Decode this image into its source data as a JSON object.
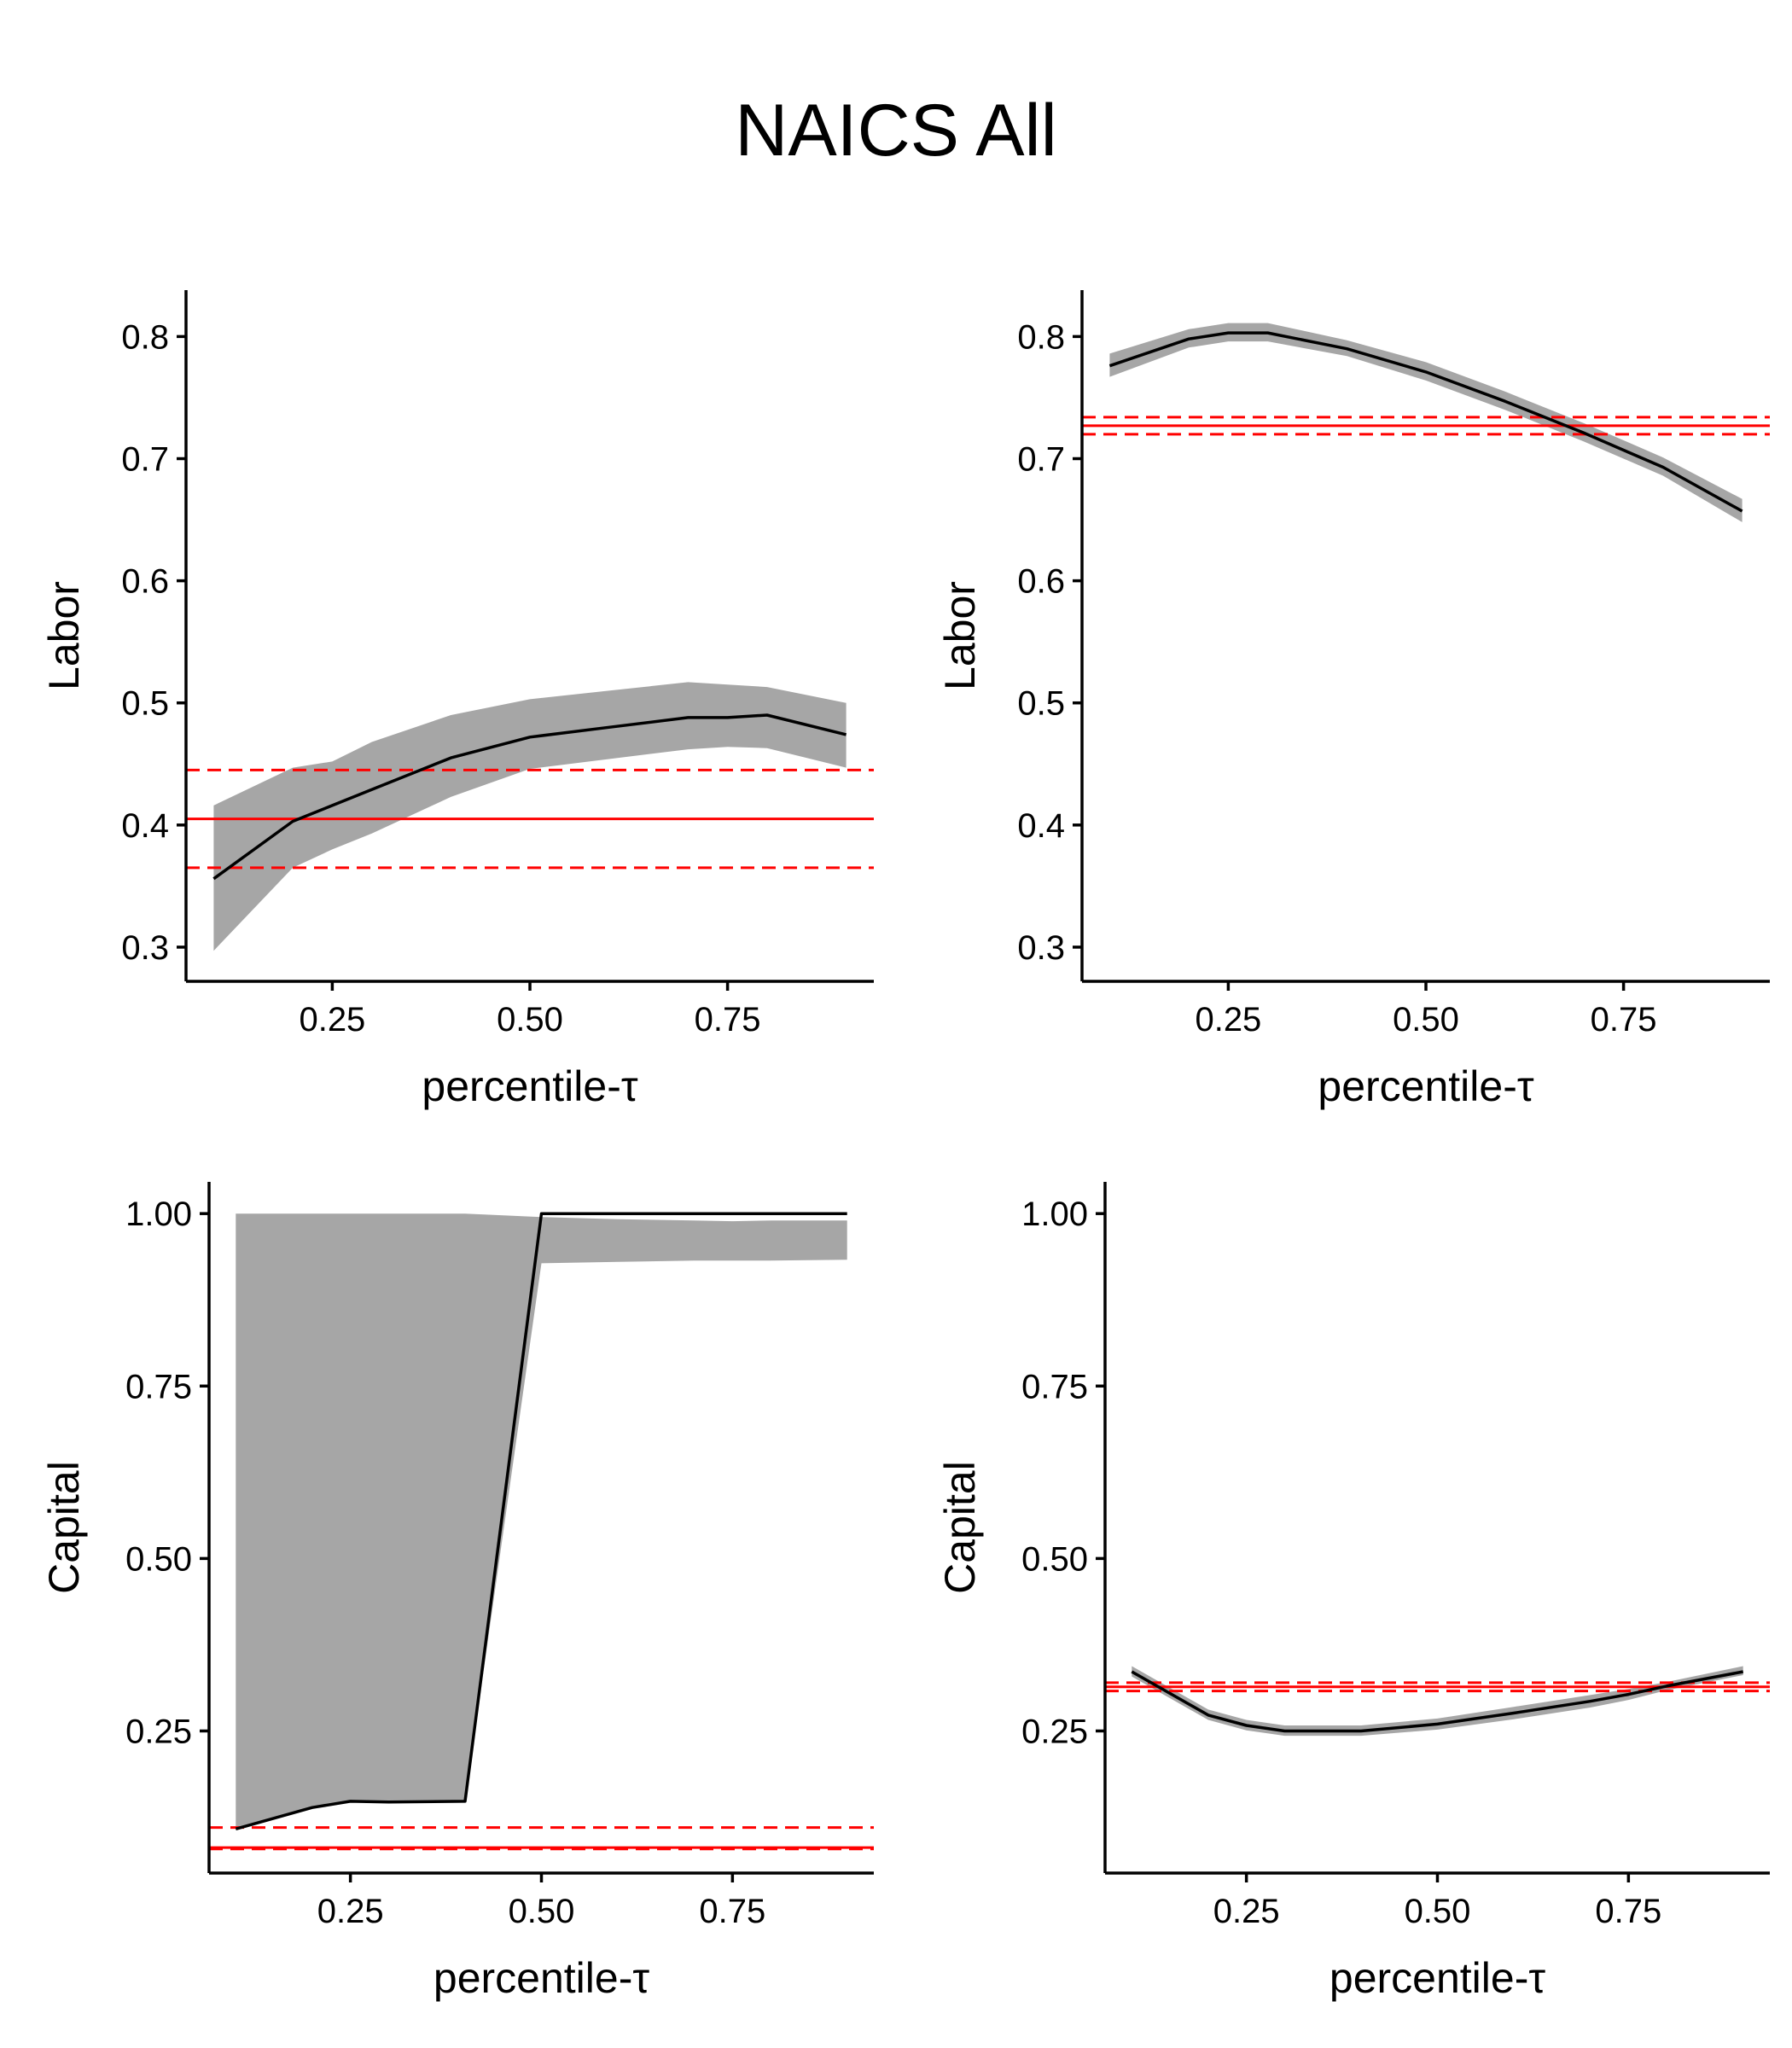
{
  "title": "NAICS All",
  "chart_data": [
    {
      "type": "line",
      "panel": "top-left",
      "xlabel": "percentile-τ",
      "ylabel": "Labor",
      "xlim": [
        0.065,
        0.935
      ],
      "ylim": [
        0.272,
        0.838
      ],
      "xticks": [
        0.25,
        0.5,
        0.75
      ],
      "xtick_labels": [
        "0.25",
        "0.50",
        "0.75"
      ],
      "yticks": [
        0.3,
        0.4,
        0.5,
        0.6,
        0.7,
        0.8
      ],
      "ytick_labels": [
        "0.3",
        "0.4",
        "0.5",
        "0.6",
        "0.7",
        "0.8"
      ],
      "x": [
        0.1,
        0.2,
        0.25,
        0.3,
        0.4,
        0.5,
        0.6,
        0.7,
        0.75,
        0.8,
        0.9
      ],
      "estimate": [
        0.356,
        0.403,
        0.416,
        0.429,
        0.455,
        0.472,
        0.48,
        0.488,
        0.488,
        0.49,
        0.474
      ],
      "ci_lower": [
        0.297,
        0.365,
        0.38,
        0.393,
        0.423,
        0.446,
        0.454,
        0.462,
        0.464,
        0.463,
        0.447
      ],
      "ci_upper": [
        0.416,
        0.447,
        0.452,
        0.468,
        0.49,
        0.503,
        0.51,
        0.517,
        0.515,
        0.513,
        0.5
      ],
      "reference": 0.405,
      "reference_lower": 0.365,
      "reference_upper": 0.445,
      "colors": {
        "line": "#000000",
        "band": "#a6a6a6",
        "reference": "#ff0000"
      }
    },
    {
      "type": "line",
      "panel": "top-right",
      "xlabel": "percentile-τ",
      "ylabel": "Labor",
      "xlim": [
        0.065,
        0.935
      ],
      "ylim": [
        0.272,
        0.838
      ],
      "xticks": [
        0.25,
        0.5,
        0.75
      ],
      "xtick_labels": [
        "0.25",
        "0.50",
        "0.75"
      ],
      "yticks": [
        0.3,
        0.4,
        0.5,
        0.6,
        0.7,
        0.8
      ],
      "ytick_labels": [
        "0.3",
        "0.4",
        "0.5",
        "0.6",
        "0.7",
        "0.8"
      ],
      "x": [
        0.1,
        0.2,
        0.25,
        0.3,
        0.4,
        0.5,
        0.6,
        0.7,
        0.75,
        0.8,
        0.9
      ],
      "estimate": [
        0.776,
        0.798,
        0.803,
        0.803,
        0.79,
        0.771,
        0.747,
        0.721,
        0.707,
        0.693,
        0.657
      ],
      "ci_lower": [
        0.767,
        0.791,
        0.796,
        0.796,
        0.784,
        0.764,
        0.74,
        0.714,
        0.7,
        0.686,
        0.648
      ],
      "ci_upper": [
        0.786,
        0.806,
        0.811,
        0.811,
        0.797,
        0.779,
        0.755,
        0.729,
        0.715,
        0.701,
        0.667
      ],
      "reference": 0.727,
      "reference_lower": 0.72,
      "reference_upper": 0.734,
      "colors": {
        "line": "#000000",
        "band": "#a6a6a6",
        "reference": "#ff0000"
      }
    },
    {
      "type": "line",
      "panel": "bottom-left",
      "xlabel": "percentile-τ",
      "ylabel": "Capital",
      "xlim": [
        0.065,
        0.935
      ],
      "ylim": [
        0.044,
        1.046
      ],
      "xticks": [
        0.25,
        0.5,
        0.75
      ],
      "xtick_labels": [
        "0.25",
        "0.50",
        "0.75"
      ],
      "yticks": [
        0.25,
        0.5,
        0.75,
        1.0
      ],
      "ytick_labels": [
        "0.25",
        "0.50",
        "0.75",
        "1.00"
      ],
      "x": [
        0.1,
        0.2,
        0.25,
        0.3,
        0.4,
        0.5,
        0.6,
        0.7,
        0.75,
        0.8,
        0.9
      ],
      "estimate": [
        0.108,
        0.139,
        0.148,
        0.147,
        0.148,
        1.0,
        1.0,
        1.0,
        1.0,
        1.0,
        1.0
      ],
      "ci_lower": [
        0.108,
        0.139,
        0.148,
        0.147,
        0.148,
        0.928,
        0.93,
        0.932,
        0.932,
        0.932,
        0.933
      ],
      "ci_upper": [
        1.0,
        1.0,
        1.0,
        1.0,
        1.0,
        0.995,
        0.992,
        0.99,
        0.989,
        0.99,
        0.99
      ],
      "reference": 0.081,
      "reference_lower": 0.079,
      "reference_upper": 0.11,
      "colors": {
        "line": "#000000",
        "band": "#a6a6a6",
        "reference": "#ff0000"
      }
    },
    {
      "type": "line",
      "panel": "bottom-right",
      "xlabel": "percentile-τ",
      "ylabel": "Capital",
      "xlim": [
        0.065,
        0.935
      ],
      "ylim": [
        0.044,
        1.046
      ],
      "xticks": [
        0.25,
        0.5,
        0.75
      ],
      "xtick_labels": [
        "0.25",
        "0.50",
        "0.75"
      ],
      "yticks": [
        0.25,
        0.5,
        0.75,
        1.0
      ],
      "ytick_labels": [
        "0.25",
        "0.50",
        "0.75",
        "1.00"
      ],
      "x": [
        0.1,
        0.2,
        0.25,
        0.3,
        0.4,
        0.5,
        0.6,
        0.7,
        0.75,
        0.8,
        0.9
      ],
      "estimate": [
        0.336,
        0.273,
        0.258,
        0.25,
        0.25,
        0.26,
        0.276,
        0.293,
        0.303,
        0.315,
        0.336
      ],
      "ci_lower": [
        0.329,
        0.266,
        0.251,
        0.243,
        0.243,
        0.252,
        0.267,
        0.284,
        0.295,
        0.309,
        0.331
      ],
      "ci_upper": [
        0.344,
        0.281,
        0.266,
        0.258,
        0.258,
        0.268,
        0.285,
        0.302,
        0.311,
        0.321,
        0.344
      ],
      "reference": 0.314,
      "reference_lower": 0.308,
      "reference_upper": 0.32,
      "colors": {
        "line": "#000000",
        "band": "#a6a6a6",
        "reference": "#ff0000"
      }
    }
  ]
}
